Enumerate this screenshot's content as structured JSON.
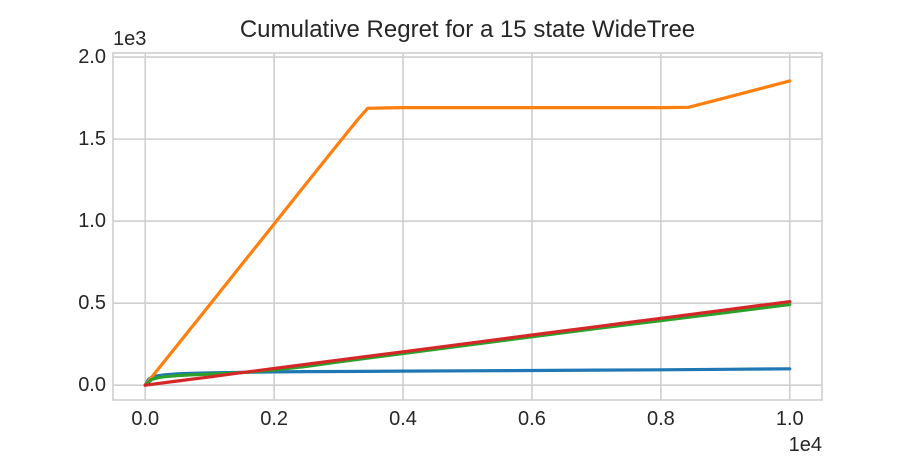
{
  "figure": {
    "background": "#ffffff"
  },
  "chart_data": {
    "type": "line",
    "title": "Cumulative Regret for a 15 state WideTree",
    "xlabel": "",
    "ylabel": "",
    "x_offset_label": "1e4",
    "y_offset_label": "1e3",
    "xlim": [
      -500,
      10500
    ],
    "ylim": [
      -90,
      2025
    ],
    "grid": true,
    "grid_color": "#cfcfcf",
    "text_color": "#262626",
    "legend_position": "none",
    "x_ticks": [
      {
        "value": 0,
        "label": "0.0"
      },
      {
        "value": 2000,
        "label": "0.2"
      },
      {
        "value": 4000,
        "label": "0.4"
      },
      {
        "value": 6000,
        "label": "0.6"
      },
      {
        "value": 8000,
        "label": "0.8"
      },
      {
        "value": 10000,
        "label": "1.0"
      }
    ],
    "y_ticks": [
      {
        "value": 0,
        "label": "0.0"
      },
      {
        "value": 500,
        "label": "0.5"
      },
      {
        "value": 1000,
        "label": "1.0"
      },
      {
        "value": 1500,
        "label": "1.5"
      },
      {
        "value": 2000,
        "label": "2.0"
      }
    ],
    "series": [
      {
        "name": "blue",
        "color": "#1f77b4",
        "points": [
          [
            0,
            0
          ],
          [
            50,
            35
          ],
          [
            100,
            48
          ],
          [
            150,
            54
          ],
          [
            200,
            58
          ],
          [
            300,
            63
          ],
          [
            400,
            66
          ],
          [
            500,
            69
          ],
          [
            700,
            72
          ],
          [
            1000,
            75
          ],
          [
            1500,
            78
          ],
          [
            2000,
            81
          ],
          [
            2500,
            83
          ],
          [
            3000,
            84
          ],
          [
            4000,
            86
          ],
          [
            5000,
            88
          ],
          [
            6000,
            90
          ],
          [
            7000,
            92
          ],
          [
            8000,
            94
          ],
          [
            9000,
            97
          ],
          [
            10000,
            100
          ]
        ]
      },
      {
        "name": "orange",
        "color": "#ff7f0e",
        "points": [
          [
            0,
            0
          ],
          [
            500,
            245
          ],
          [
            1000,
            490
          ],
          [
            1500,
            737
          ],
          [
            2000,
            983
          ],
          [
            2500,
            1230
          ],
          [
            3000,
            1475
          ],
          [
            3300,
            1620
          ],
          [
            3450,
            1688
          ],
          [
            4000,
            1692
          ],
          [
            5000,
            1692
          ],
          [
            6000,
            1692
          ],
          [
            7000,
            1692
          ],
          [
            8000,
            1692
          ],
          [
            8430,
            1694
          ],
          [
            9000,
            1752
          ],
          [
            10000,
            1855
          ]
        ]
      },
      {
        "name": "green",
        "color": "#2ca02c",
        "points": [
          [
            0,
            0
          ],
          [
            100,
            35
          ],
          [
            200,
            46
          ],
          [
            300,
            52
          ],
          [
            500,
            58
          ],
          [
            700,
            63
          ],
          [
            1000,
            68
          ],
          [
            1500,
            77
          ],
          [
            2000,
            93
          ],
          [
            2500,
            115
          ],
          [
            3000,
            142
          ],
          [
            4000,
            193
          ],
          [
            5000,
            244
          ],
          [
            6000,
            295
          ],
          [
            7000,
            345
          ],
          [
            8000,
            394
          ],
          [
            9000,
            443
          ],
          [
            10000,
            492
          ]
        ]
      },
      {
        "name": "red",
        "color": "#d62728",
        "points": [
          [
            0,
            0
          ],
          [
            500,
            26
          ],
          [
            1000,
            51
          ],
          [
            1500,
            77
          ],
          [
            2000,
            102
          ],
          [
            3000,
            153
          ],
          [
            4000,
            204
          ],
          [
            5000,
            255
          ],
          [
            6000,
            306
          ],
          [
            7000,
            357
          ],
          [
            8000,
            408
          ],
          [
            9000,
            459
          ],
          [
            10000,
            510
          ]
        ]
      }
    ]
  }
}
